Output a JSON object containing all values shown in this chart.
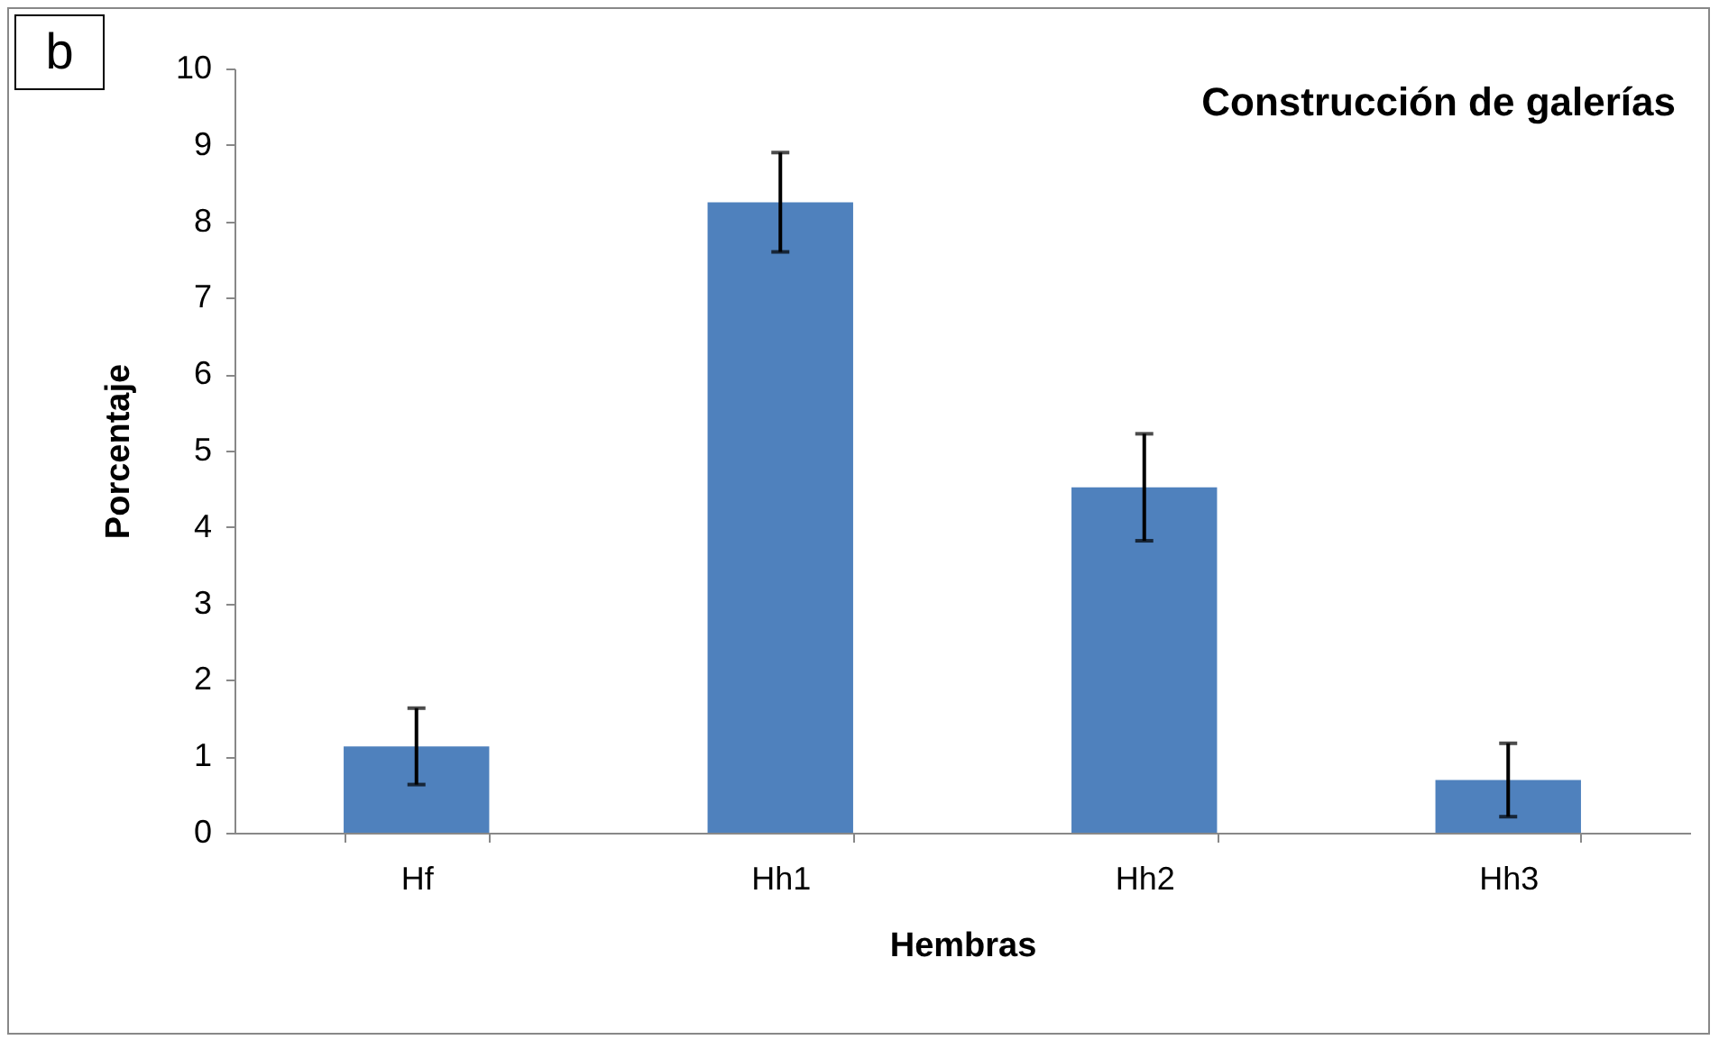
{
  "chart_data": {
    "type": "bar",
    "title": "Construcción de galerías",
    "xlabel": "Hembras",
    "ylabel": "Porcentaje",
    "categories": [
      "Hf",
      "Hh1",
      "Hh2",
      "Hh3"
    ],
    "series": [
      {
        "color": "#4f81bd",
        "values": [
          1.13,
          8.25,
          4.52,
          0.69
        ],
        "errors": [
          0.5,
          0.65,
          0.7,
          0.48
        ]
      }
    ],
    "ylim": [
      0,
      10
    ],
    "yticks": [
      0,
      1,
      2,
      3,
      4,
      5,
      6,
      7,
      8,
      9,
      10
    ],
    "grid": false,
    "annotations": [
      "b"
    ]
  }
}
